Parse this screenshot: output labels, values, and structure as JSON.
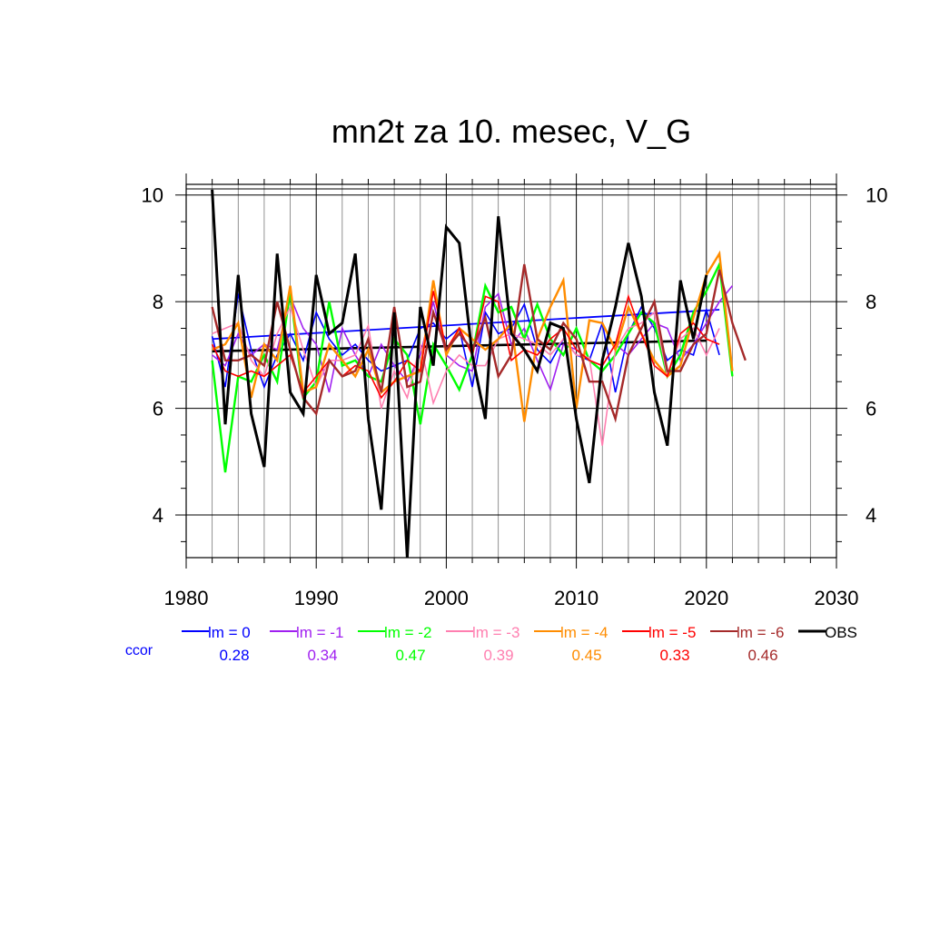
{
  "chart_data": {
    "type": "line",
    "title": "mn2t za 10. mesec, V_G",
    "xlabel": "",
    "ylabel": "",
    "xlim": [
      1980,
      2030
    ],
    "ylim": [
      3.2,
      10.2
    ],
    "x_ticks": [
      1980,
      1990,
      2000,
      2010,
      2020,
      2030
    ],
    "y_ticks": [
      4,
      6,
      8,
      10
    ],
    "grid": true,
    "legend_position": "bottom",
    "ccor_label": "ccor",
    "series": [
      {
        "name": "lm = 0",
        "color": "#0000ff",
        "ccor": "0.28",
        "x_start": 1982,
        "values": [
          7.35,
          6.4,
          8.15,
          7.1,
          6.4,
          7.0,
          7.4,
          6.9,
          7.8,
          7.3,
          7.0,
          7.2,
          6.9,
          6.7,
          6.8,
          6.9,
          7.5,
          7.6,
          7.3,
          7.5,
          6.4,
          7.8,
          7.4,
          7.5,
          7.95,
          7.1,
          6.85,
          7.3,
          7.0,
          6.9,
          7.6,
          6.3,
          7.4,
          7.9,
          7.5,
          6.9,
          7.1,
          7.0,
          7.85,
          7.0
        ],
        "trend": [
          7.3,
          7.85
        ]
      },
      {
        "name": "lm = -1",
        "color": "#a020f0",
        "ccor": "0.34",
        "x_start": 1982,
        "values": [
          7.0,
          6.8,
          7.4,
          7.0,
          7.2,
          7.1,
          8.1,
          7.5,
          7.2,
          6.3,
          7.5,
          7.0,
          6.6,
          7.2,
          6.8,
          6.5,
          7.0,
          8.0,
          7.0,
          6.8,
          6.7,
          7.9,
          8.15,
          7.2,
          7.5,
          6.9,
          6.35,
          7.2,
          7.1,
          6.9,
          6.8,
          7.2,
          7.0,
          7.3,
          7.6,
          7.5,
          6.9,
          7.2,
          7.6,
          8.0,
          8.3
        ],
        "trend": null
      },
      {
        "name": "lm = -2",
        "color": "#00ff00",
        "ccor": "0.47",
        "x_start": 1982,
        "values": [
          6.9,
          4.8,
          6.6,
          6.5,
          7.0,
          6.5,
          8.2,
          6.2,
          6.5,
          8.0,
          6.8,
          6.9,
          6.6,
          6.5,
          7.3,
          7.0,
          5.7,
          7.2,
          6.8,
          6.35,
          7.0,
          8.3,
          7.8,
          7.9,
          7.3,
          7.95,
          7.3,
          7.0,
          7.5,
          6.9,
          6.7,
          7.0,
          7.4,
          7.8,
          7.6,
          6.6,
          7.0,
          7.8,
          8.2,
          8.7,
          6.6
        ],
        "trend": null
      },
      {
        "name": "lm = -3",
        "color": "#ff7fb0",
        "ccor": "0.39",
        "x_start": 1982,
        "values": [
          7.4,
          7.5,
          7.6,
          6.9,
          6.6,
          7.4,
          7.9,
          7.1,
          6.4,
          6.9,
          6.9,
          7.0,
          7.55,
          6.0,
          6.7,
          6.2,
          7.2,
          6.1,
          6.7,
          7.0,
          6.8,
          6.8,
          7.3,
          7.4,
          7.3,
          7.2,
          7.0,
          7.3,
          7.0,
          6.95,
          5.3,
          7.1,
          7.5,
          7.6,
          7.8,
          6.6,
          7.3,
          7.5,
          7.0,
          7.5
        ],
        "trend": null
      },
      {
        "name": "lm = -4",
        "color": "#ff8c00",
        "ccor": "0.45",
        "x_start": 1982,
        "values": [
          7.1,
          7.2,
          7.6,
          6.2,
          7.2,
          6.9,
          8.3,
          6.3,
          6.4,
          7.2,
          6.9,
          6.6,
          7.1,
          6.3,
          6.5,
          6.6,
          6.7,
          8.4,
          7.0,
          7.5,
          7.3,
          7.1,
          7.3,
          7.6,
          5.75,
          7.3,
          7.9,
          8.4,
          6.0,
          7.65,
          7.6,
          7.1,
          7.9,
          7.4,
          6.9,
          6.6,
          6.8,
          7.7,
          8.5,
          8.9,
          6.7
        ],
        "trend": null
      },
      {
        "name": "lm = -5",
        "color": "#ff0000",
        "ccor": "0.33",
        "x_start": 1982,
        "values": [
          7.2,
          6.7,
          6.6,
          6.7,
          6.6,
          6.8,
          7.0,
          6.3,
          6.6,
          6.9,
          6.6,
          6.8,
          6.7,
          6.2,
          6.5,
          6.9,
          6.7,
          8.2,
          7.1,
          7.5,
          7.0,
          8.1,
          8.0,
          6.9,
          7.1,
          7.0,
          7.3,
          7.5,
          7.1,
          6.9,
          6.8,
          7.2,
          8.1,
          7.4,
          6.8,
          6.6,
          7.4,
          7.6,
          7.3,
          7.2
        ],
        "trend": null
      },
      {
        "name": "lm = -6",
        "color": "#a52a2a",
        "ccor": "0.46",
        "x_start": 1982,
        "values": [
          7.9,
          6.9,
          6.9,
          7.0,
          6.8,
          8.0,
          7.1,
          6.2,
          5.9,
          6.9,
          6.6,
          6.7,
          7.3,
          6.3,
          7.9,
          6.4,
          6.5,
          7.8,
          7.1,
          7.4,
          7.1,
          7.7,
          6.6,
          7.0,
          8.7,
          7.3,
          7.1,
          7.6,
          7.3,
          6.5,
          6.5,
          5.8,
          7.0,
          7.5,
          8.0,
          6.7,
          6.7,
          7.2,
          7.4,
          8.6,
          7.6,
          6.9
        ],
        "trend": null
      },
      {
        "name": "OBS",
        "color": "#000000",
        "ccor": "",
        "x_start": 1982,
        "values": [
          10.1,
          5.7,
          8.5,
          5.9,
          4.9,
          8.9,
          6.3,
          5.9,
          8.5,
          7.4,
          7.6,
          8.9,
          5.8,
          4.1,
          7.8,
          3.2,
          7.9,
          6.8,
          9.4,
          9.1,
          7.0,
          5.8,
          9.6,
          7.4,
          7.1,
          6.7,
          7.6,
          7.5,
          5.8,
          4.6,
          6.9,
          7.9,
          9.1,
          8.1,
          6.3,
          5.3,
          8.4,
          7.3,
          8.5
        ],
        "trend": [
          7.07,
          7.27
        ]
      }
    ]
  }
}
